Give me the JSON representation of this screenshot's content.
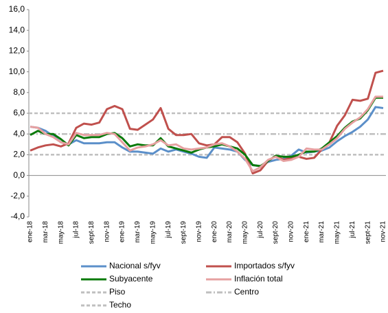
{
  "chart_data": {
    "type": "line",
    "categories": [
      "ene-18",
      null,
      "mar-18",
      null,
      "may-18",
      null,
      "jul-18",
      null,
      "sept-18",
      null,
      "nov-18",
      null,
      "ene-19",
      null,
      "mar-19",
      null,
      "may-19",
      null,
      "jul-19",
      null,
      "sept-19",
      null,
      "nov-19",
      null,
      "ene-20",
      null,
      "mar-20",
      null,
      "may-20",
      null,
      "jul-20",
      null,
      "sept-20",
      null,
      "nov-20",
      null,
      "ene-21",
      null,
      "mar-21",
      null,
      "may-21",
      null,
      "jul-21",
      null,
      "sept-21",
      null,
      "nov-21"
    ],
    "series": [
      {
        "name": "Nacional s/fyv",
        "color": "#5b8fc9",
        "values": [
          4.7,
          4.6,
          4.3,
          3.8,
          3.2,
          3.0,
          3.4,
          3.1,
          3.1,
          3.1,
          3.2,
          3.2,
          2.7,
          2.3,
          2.3,
          2.2,
          2.1,
          2.6,
          2.3,
          2.5,
          2.3,
          2.1,
          1.8,
          1.7,
          2.7,
          2.6,
          2.5,
          2.3,
          1.5,
          1.0,
          0.9,
          1.3,
          1.5,
          1.6,
          1.9,
          2.5,
          2.2,
          2.3,
          2.4,
          2.7,
          3.3,
          3.8,
          4.2,
          4.7,
          5.4,
          6.6,
          6.5
        ]
      },
      {
        "name": "Importados s/fyv",
        "color": "#c0504d",
        "values": [
          2.4,
          2.7,
          2.9,
          3.0,
          2.8,
          3.1,
          4.6,
          5.0,
          4.9,
          5.1,
          6.4,
          6.7,
          6.4,
          4.5,
          4.4,
          4.9,
          5.4,
          6.5,
          4.5,
          3.9,
          3.9,
          4.0,
          3.1,
          2.9,
          3.0,
          3.7,
          3.7,
          3.2,
          2.1,
          0.2,
          0.5,
          1.4,
          1.9,
          1.5,
          1.7,
          1.8,
          1.6,
          1.7,
          2.5,
          3.2,
          4.8,
          5.8,
          7.3,
          7.2,
          7.4,
          9.9,
          10.1
        ]
      },
      {
        "name": "Subyacente",
        "color": "#0a7a0a",
        "values": [
          3.9,
          4.3,
          4.0,
          4.0,
          3.5,
          2.9,
          3.9,
          3.6,
          3.7,
          3.7,
          4.0,
          4.1,
          3.6,
          2.8,
          3.0,
          2.9,
          2.9,
          3.6,
          2.8,
          2.6,
          2.4,
          2.2,
          2.5,
          2.7,
          2.8,
          3.0,
          2.8,
          2.6,
          2.0,
          1.0,
          0.9,
          1.4,
          1.9,
          1.8,
          1.8,
          2.0,
          2.3,
          2.3,
          2.6,
          3.2,
          3.8,
          4.6,
          5.2,
          5.5,
          6.3,
          7.5,
          7.5
        ]
      },
      {
        "name": "Inflación total",
        "color": "#e6a0a0",
        "values": [
          4.7,
          4.6,
          4.0,
          3.7,
          3.2,
          3.0,
          4.1,
          3.9,
          3.9,
          3.9,
          4.1,
          4.0,
          3.2,
          2.4,
          2.7,
          2.8,
          3.0,
          3.4,
          2.9,
          3.0,
          2.6,
          2.5,
          2.6,
          2.7,
          3.0,
          3.1,
          2.8,
          2.3,
          1.6,
          0.4,
          0.8,
          1.5,
          1.8,
          1.4,
          1.5,
          1.8,
          2.6,
          2.5,
          2.5,
          3.0,
          3.6,
          4.5,
          5.1,
          5.6,
          6.4,
          7.6,
          7.6
        ]
      }
    ],
    "reference_lines": [
      {
        "name": "Piso",
        "value": 2,
        "color": "#bfbfbf",
        "dash": "dashed"
      },
      {
        "name": "Centro",
        "value": 4,
        "color": "#bfbfbf",
        "dash": "dashdot"
      },
      {
        "name": "Techo",
        "value": 6,
        "color": "#bfbfbf",
        "dash": "dashed"
      }
    ],
    "ylim": [
      -4,
      16
    ],
    "yticks": [
      {
        "value": -4,
        "label": "-4,0"
      },
      {
        "value": -2,
        "label": "-2,0"
      },
      {
        "value": 0,
        "label": "0,0"
      },
      {
        "value": 2,
        "label": "2,0"
      },
      {
        "value": 4,
        "label": "4,0"
      },
      {
        "value": 6,
        "label": "6,0"
      },
      {
        "value": 8,
        "label": "8,0"
      },
      {
        "value": 10,
        "label": "10,0"
      },
      {
        "value": 12,
        "label": "12,0"
      },
      {
        "value": 14,
        "label": "14,0"
      },
      {
        "value": 16,
        "label": "16,0"
      }
    ],
    "grid": false
  }
}
